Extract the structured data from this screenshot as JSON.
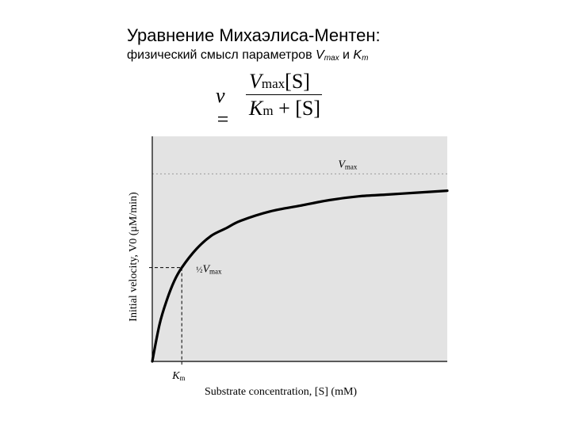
{
  "slide": {
    "title": "Уравнение Михаэлиса-Ментен:",
    "subtitle_prefix": "физический смысл параметров ",
    "subtitle_v": "V",
    "subtitle_v_sub": "max",
    "subtitle_and": " и ",
    "subtitle_k": "K",
    "subtitle_k_sub": "m"
  },
  "formula": {
    "lhs": "v =",
    "num_v": "V",
    "num_sub": "max",
    "num_s": "[S]",
    "den_k": "K",
    "den_sub": "m",
    "den_rest": " + [S]"
  },
  "colors": {
    "plot_bg": "#e3e3e3",
    "curve": "#000000",
    "guide": "#000000"
  },
  "chart_data": {
    "type": "line",
    "title": "",
    "xlabel": "Substrate concentration, [S] (mM)",
    "ylabel": "Initial velocity, V0 (μM/min)",
    "xlim": [
      0,
      10
    ],
    "ylim": [
      0,
      1.2
    ],
    "grid": false,
    "vmax": 1.0,
    "km": 1.0,
    "vmax_label": "Vmax",
    "half_vmax_label": "½Vmax",
    "km_label": "Km",
    "series": [
      {
        "x": [
          0,
          0.25,
          0.5,
          0.75,
          1.0,
          1.5,
          2.0,
          2.5,
          3.0,
          4.0,
          5.0,
          6.0,
          7.0,
          8.0,
          9.0,
          10.0
        ],
        "values": [
          0,
          0.2,
          0.33,
          0.43,
          0.5,
          0.6,
          0.67,
          0.71,
          0.75,
          0.8,
          0.83,
          0.86,
          0.88,
          0.89,
          0.9,
          0.91
        ]
      }
    ]
  }
}
